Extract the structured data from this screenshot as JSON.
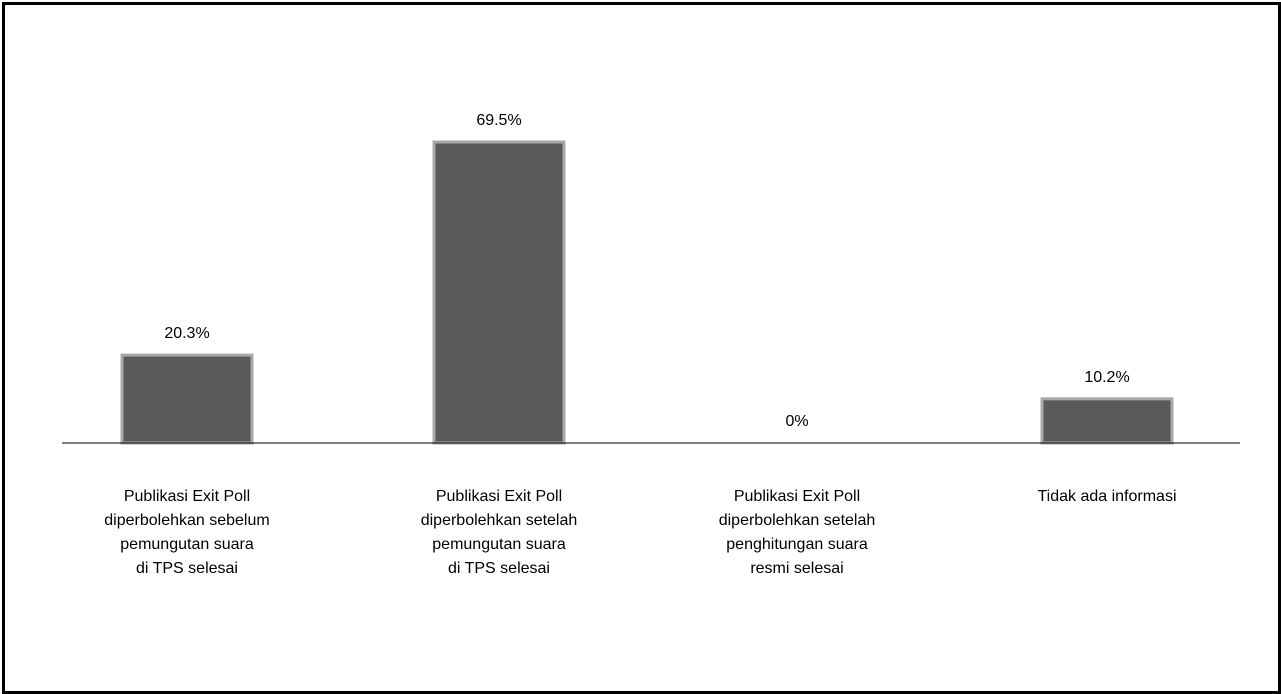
{
  "chart_data": {
    "type": "bar",
    "categories": [
      "Publikasi Exit Poll\ndiperbolehkan sebelum\npemungutan suara\ndi TPS selesai",
      "Publikasi Exit Poll\ndiperbolehkan setelah\npemungutan suara\ndi TPS selesai",
      "Publikasi Exit Poll\ndiperbolehkan setelah\npenghitungan suara\nresmi selesai",
      "Tidak ada informasi"
    ],
    "values": [
      20.3,
      69.5,
      0,
      10.2
    ],
    "value_labels": [
      "20.3%",
      "69.5%",
      "0%",
      "10.2%"
    ],
    "title": "",
    "xlabel": "",
    "ylabel": "",
    "ylim": [
      0,
      69.5
    ],
    "grid": false,
    "legend": "none",
    "bar_color": "#5a5a5a",
    "bar_edge_color": "#a8a8a8",
    "axis_color": "#000000"
  }
}
